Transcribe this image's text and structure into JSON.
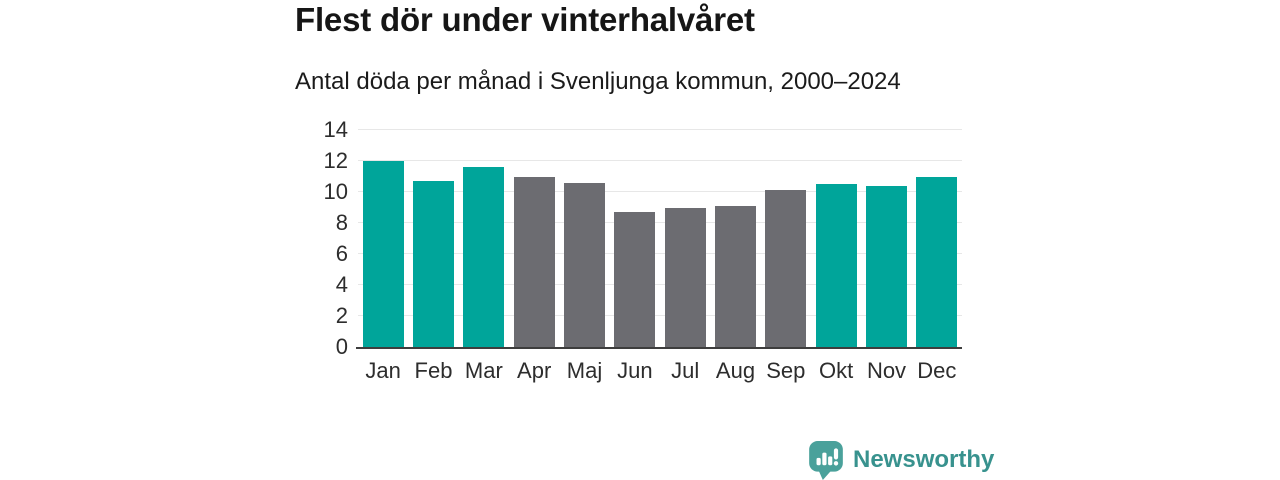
{
  "header": {
    "title": "Flest dör under vinterhalvåret",
    "subtitle": "Antal döda per månad i Svenljunga kommun, 2000–2024"
  },
  "chart_data": {
    "type": "bar",
    "title": "Flest dör under vinterhalvåret",
    "subtitle": "Antal döda per månad i Svenljunga kommun, 2000–2024",
    "categories": [
      "Jan",
      "Feb",
      "Mar",
      "Apr",
      "Maj",
      "Jun",
      "Jul",
      "Aug",
      "Sep",
      "Okt",
      "Nov",
      "Dec"
    ],
    "values": [
      12.0,
      10.7,
      11.6,
      11.0,
      10.6,
      8.7,
      9.0,
      9.1,
      10.1,
      10.5,
      10.4,
      11.0
    ],
    "bar_colors": [
      "#00a59a",
      "#00a59a",
      "#00a59a",
      "#6c6c71",
      "#6c6c71",
      "#6c6c71",
      "#6c6c71",
      "#6c6c71",
      "#6c6c71",
      "#00a59a",
      "#00a59a",
      "#00a59a"
    ],
    "xlabel": "",
    "ylabel": "",
    "ylim": [
      0,
      14
    ],
    "yticks": [
      0,
      2,
      4,
      6,
      8,
      10,
      12,
      14
    ],
    "grid": true,
    "legend": false
  },
  "colors": {
    "winter_bar": "#00a59a",
    "summer_bar": "#6c6c71",
    "gridline": "#e7e7e7",
    "axis_line": "#3d3d3d",
    "tick_text": "#2d2d2d",
    "logo_teal": "#38928e",
    "logo_bubble": "#4aa19b"
  },
  "branding": {
    "logo_text": "Newsworthy",
    "logo_icon": "bar-chart-speech-bubble-icon"
  }
}
